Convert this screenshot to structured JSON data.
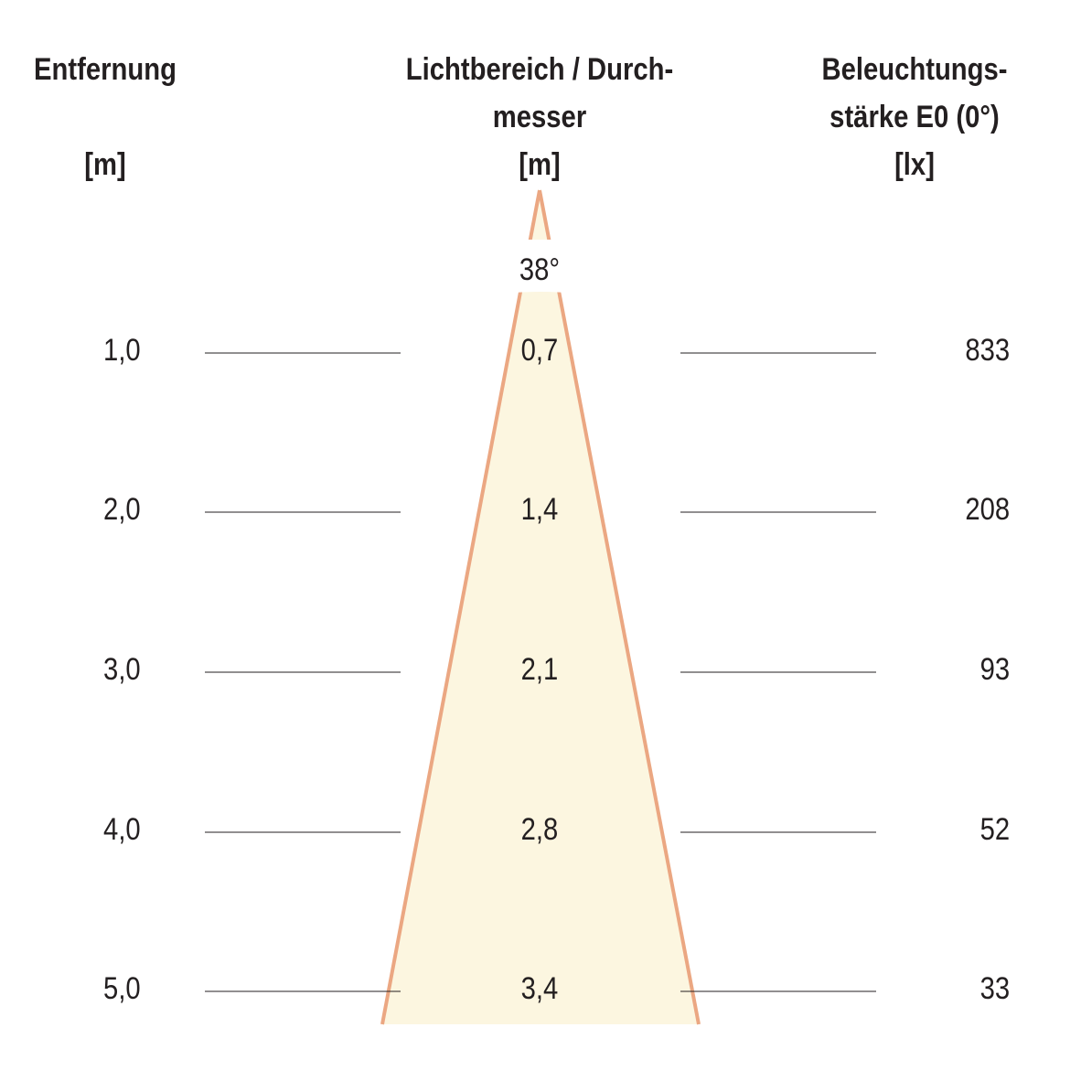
{
  "headers": {
    "distance": {
      "line1": "Entfernung",
      "unit": "[m]"
    },
    "diameter": {
      "line1": "Lichtbereich / Durch-",
      "line2": "messer",
      "unit": "[m]"
    },
    "illuminance": {
      "line1": "Beleuchtungs-",
      "line2": "stärke E0 (0°)",
      "unit": "[lx]"
    }
  },
  "beam_angle": "38°",
  "rows": [
    {
      "distance": "1,0",
      "diameter": "0,7",
      "illuminance": "833"
    },
    {
      "distance": "2,0",
      "diameter": "1,4",
      "illuminance": "208"
    },
    {
      "distance": "3,0",
      "diameter": "2,1",
      "illuminance": "93"
    },
    {
      "distance": "4,0",
      "diameter": "2,8",
      "illuminance": "52"
    },
    {
      "distance": "5,0",
      "diameter": "3,4",
      "illuminance": "33"
    }
  ],
  "colors": {
    "cone_fill": "#fcf6e0",
    "cone_stroke": "#eba782",
    "text": "#231f20"
  }
}
